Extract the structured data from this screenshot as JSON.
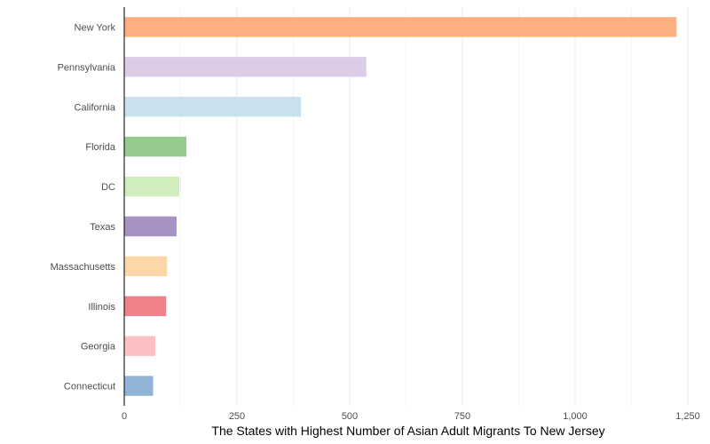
{
  "chart_data": {
    "type": "bar",
    "orientation": "horizontal",
    "title": "",
    "xlabel": "The States with Highest Number of Asian Adult Migrants To New Jersey",
    "ylabel": "",
    "categories": [
      "New York",
      "Pennsylvania",
      "California",
      "Florida",
      "DC",
      "Texas",
      "Massachusetts",
      "Illinois",
      "Georgia",
      "Connecticut"
    ],
    "values": [
      1225,
      537,
      392,
      138,
      122,
      116,
      95,
      93,
      69,
      64
    ],
    "colors": [
      "#FDB07F",
      "#DCCCE7",
      "#C9E0EE",
      "#95CB8E",
      "#D2EDBD",
      "#A792C5",
      "#FDD7A9",
      "#F0818A",
      "#FAC0C2",
      "#8EB4D6"
    ],
    "xlim": [
      0,
      1260
    ],
    "xticks": [
      0,
      250,
      500,
      750,
      1000,
      1250
    ],
    "xtick_labels": [
      "0",
      "250",
      "500",
      "750",
      "1,000",
      "1,250"
    ],
    "grid": true,
    "legend": "none"
  }
}
